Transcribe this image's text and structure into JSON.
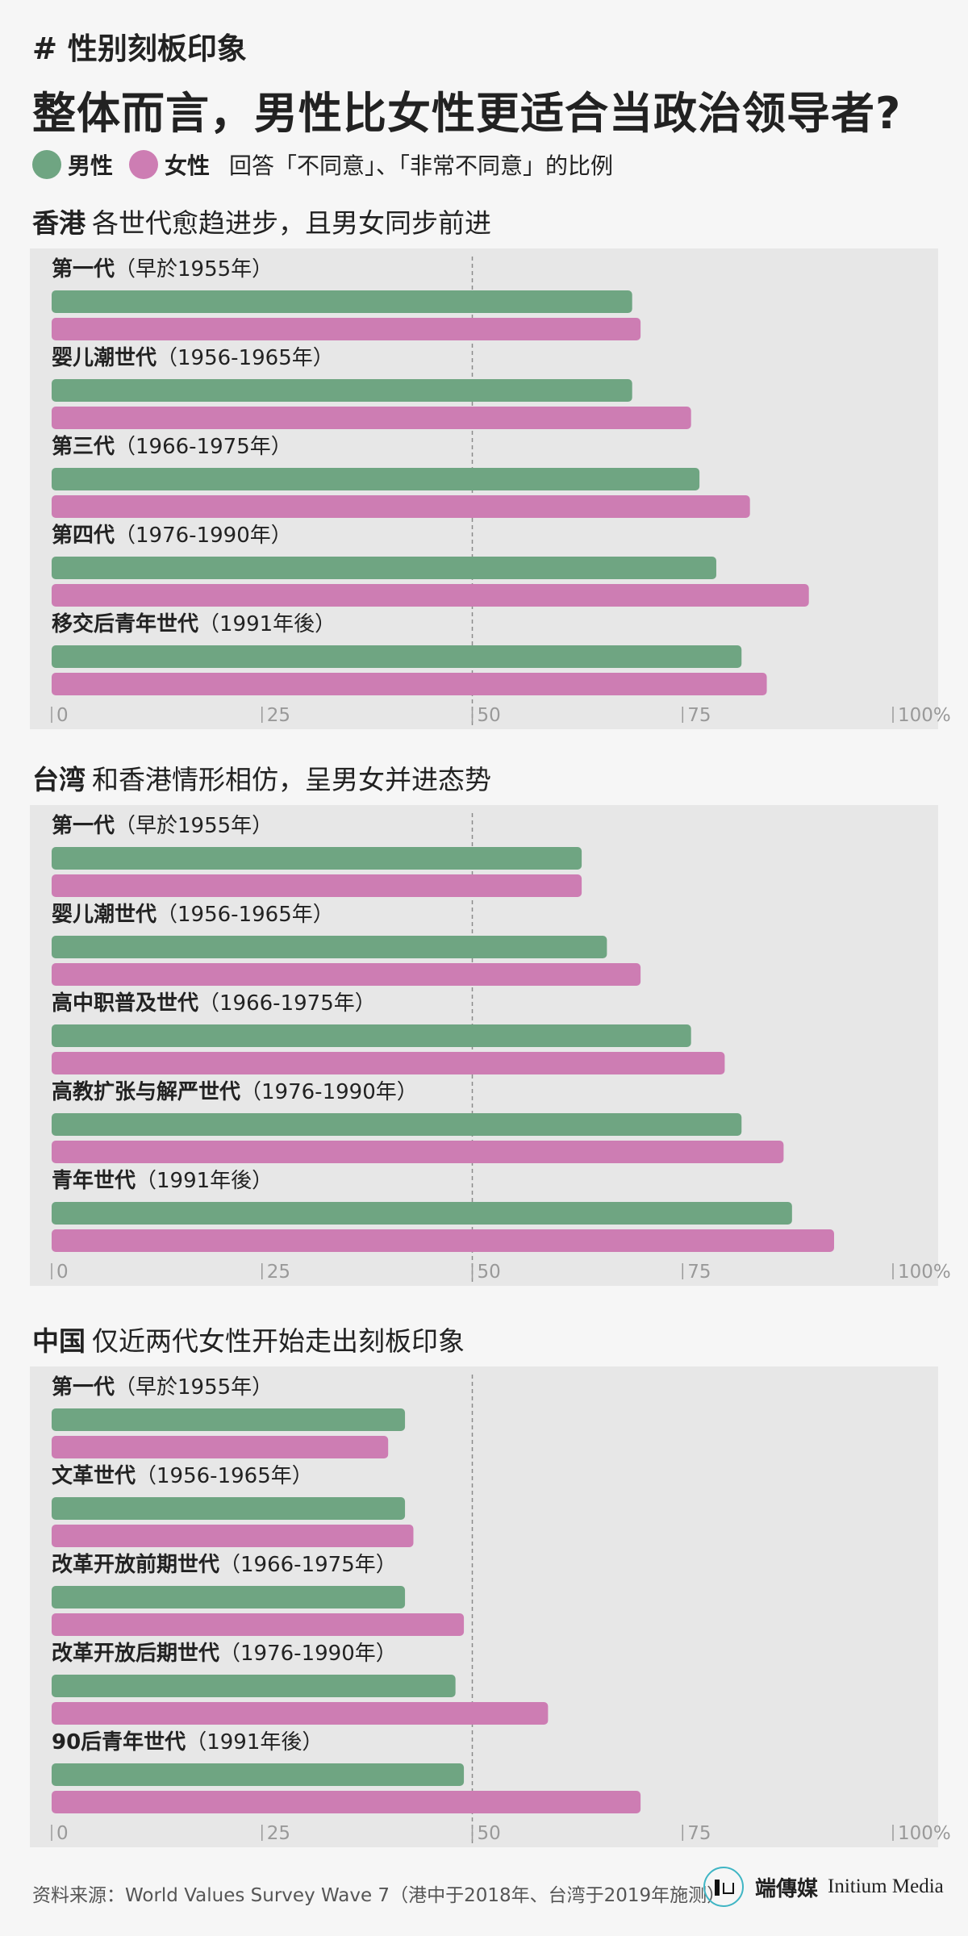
{
  "hashtag": "# 性别刻板印象",
  "title": "整体而言，男性比女性更适合当政治领导者?",
  "legend": {
    "male_label": "男性",
    "female_label": "女性",
    "note": "回答「不同意」、「非常不同意」的比例"
  },
  "colors": {
    "male": "#6fa582",
    "female": "#cd7db3"
  },
  "chart_data": [
    {
      "type": "bar",
      "region": "香港",
      "subtitle": "各世代愈趋进步，且男女同步前进",
      "xlim": [
        0,
        100
      ],
      "ticks": [
        "0",
        "25",
        "50",
        "75",
        "100%"
      ],
      "reference_line": 50,
      "categories": [
        {
          "name": "第一代",
          "range": "（早於1955年）"
        },
        {
          "name": "婴儿潮世代",
          "range": "（1956-1965年）"
        },
        {
          "name": "第三代",
          "range": "（1966-1975年）"
        },
        {
          "name": "第四代",
          "range": "（1976-1990年）"
        },
        {
          "name": "移交后青年世代",
          "range": "（1991年後）"
        }
      ],
      "series": [
        {
          "name": "男性",
          "values": [
            69,
            69,
            77,
            79,
            82
          ]
        },
        {
          "name": "女性",
          "values": [
            70,
            76,
            83,
            90,
            85
          ]
        }
      ]
    },
    {
      "type": "bar",
      "region": "台湾",
      "subtitle": "和香港情形相仿，呈男女并进态势",
      "xlim": [
        0,
        100
      ],
      "ticks": [
        "0",
        "25",
        "50",
        "75",
        "100%"
      ],
      "reference_line": 50,
      "categories": [
        {
          "name": "第一代",
          "range": "（早於1955年）"
        },
        {
          "name": "婴儿潮世代",
          "range": "（1956-1965年）"
        },
        {
          "name": "高中职普及世代",
          "range": "（1966-1975年）"
        },
        {
          "name": "高教扩张与解严世代",
          "range": "（1976-1990年）"
        },
        {
          "name": "青年世代",
          "range": "（1991年後）"
        }
      ],
      "series": [
        {
          "name": "男性",
          "values": [
            63,
            66,
            76,
            82,
            88
          ]
        },
        {
          "name": "女性",
          "values": [
            63,
            70,
            80,
            87,
            93
          ]
        }
      ]
    },
    {
      "type": "bar",
      "region": "中国",
      "subtitle": "仅近两代女性开始走出刻板印象",
      "xlim": [
        0,
        100
      ],
      "ticks": [
        "0",
        "25",
        "50",
        "75",
        "100%"
      ],
      "reference_line": 50,
      "categories": [
        {
          "name": "第一代",
          "range": "（早於1955年）"
        },
        {
          "name": "文革世代",
          "range": "（1956-1965年）"
        },
        {
          "name": "改革开放前期世代",
          "range": "（1966-1975年）"
        },
        {
          "name": "改革开放后期世代",
          "range": "（1976-1990年）"
        },
        {
          "name": "90后青年世代",
          "range": "（1991年後）"
        }
      ],
      "series": [
        {
          "name": "男性",
          "values": [
            42,
            42,
            42,
            48,
            49
          ]
        },
        {
          "name": "女性",
          "values": [
            40,
            43,
            49,
            59,
            70
          ]
        }
      ]
    }
  ],
  "source": "资料来源：World Values Survey Wave 7（港中于2018年、台湾于2019年施测）",
  "brand": {
    "zh": "端傳媒",
    "en": "Initium Media",
    "logo_icon": "initium-logo-icon"
  }
}
